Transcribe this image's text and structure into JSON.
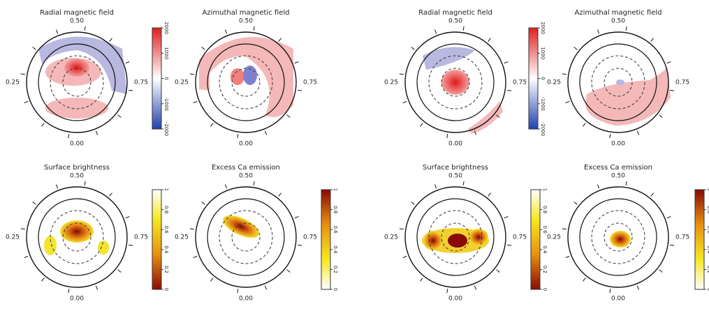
{
  "panels": [
    {
      "title": "Radial magnetic field",
      "phases": [
        "0.50",
        "0.25",
        "0.75",
        "0.00"
      ]
    },
    {
      "title": "Azimuthal magnetic field",
      "phases": [
        "0.50",
        "0.25",
        "0.75",
        "0.00"
      ]
    },
    {
      "title": "Radial magnetic field",
      "phases": [
        "0.50",
        "0.25",
        "0.75",
        "0.00"
      ]
    },
    {
      "title": "Azimuthal magnetic field",
      "phases": [
        "0.50",
        "0.25",
        "0.75",
        "0.00"
      ]
    },
    {
      "title": "Surface brightness",
      "phases": [
        "0.50",
        "0.25",
        "0.75",
        "0.00"
      ]
    },
    {
      "title": "Excess Ca emission",
      "phases": [
        "0.50",
        "0.25",
        "0.75",
        "0.00"
      ]
    },
    {
      "title": "Surface brightness",
      "phases": [
        "0.50",
        "0.25",
        "0.75",
        "0.00"
      ]
    },
    {
      "title": "Excess Ca emission",
      "phases": [
        "0.50",
        "0.25",
        "0.75",
        "0.00"
      ]
    }
  ],
  "colorbars": [
    {
      "ticks": [
        "2000",
        "1000",
        "0",
        "-1000",
        "-2000"
      ]
    },
    {
      "ticks": [
        "2000",
        "1000",
        "0",
        "-1000",
        "-2000"
      ]
    },
    {
      "ticks": [
        "1",
        "0.8",
        "0.6",
        "0.4",
        "0.2",
        "0"
      ]
    },
    {
      "ticks": [
        "1",
        "0.8",
        "0.6",
        "0.4",
        "0.2",
        "0"
      ]
    },
    {
      "ticks": [
        "1",
        "0.8",
        "0.6",
        "0.4",
        "0.2",
        "0"
      ]
    },
    {
      "ticks": [
        "1",
        "0.8",
        "0.6",
        "0.4",
        "0.2",
        "0"
      ]
    }
  ]
}
